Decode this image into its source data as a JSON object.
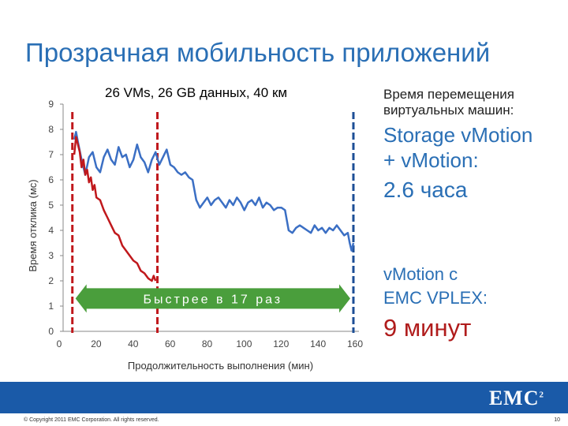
{
  "slide": {
    "title": "Прозрачная мобильность приложений",
    "copyright": "© Copyright 2011 EMC Corporation. All rights reserved.",
    "page_number": "10",
    "logo_text": "EMC",
    "logo_sup": "2"
  },
  "side_panel": {
    "heading_line1": "Время перемещения",
    "heading_line2": "виртуальных машин:",
    "tech1_line1": "Storage vMotion",
    "tech1_line2": "+ vMotion:",
    "time1": "2.6 часа",
    "tech2_line1": "vMotion с",
    "tech2_line2": "EMC VPLEX:",
    "time2": "9 минут"
  },
  "chart_data": {
    "type": "line",
    "title": "26 VMs, 26 GB данных, 40 км",
    "xlabel": "Продолжительность выполнения (мин)",
    "ylabel": "Время отклика (мс)",
    "xlim": [
      0,
      160
    ],
    "ylim": [
      0,
      9
    ],
    "xticks": [
      0,
      20,
      40,
      60,
      80,
      100,
      120,
      140,
      160
    ],
    "yticks": [
      0,
      1,
      2,
      3,
      4,
      5,
      6,
      7,
      8,
      9
    ],
    "annotation": "Быстрее в 17 раз",
    "colors": {
      "blue": "#3b6fc4",
      "red": "#c0181c",
      "arrow": "#4a9e3c",
      "divider_red": "#c0181c",
      "divider_blue": "#1d4e96"
    },
    "series": [
      {
        "color": "blue",
        "x": [
          6,
          7,
          8,
          10,
          12,
          14,
          16,
          18,
          20,
          22,
          24,
          26,
          28,
          30,
          32,
          34,
          36,
          38,
          40,
          42,
          44,
          46,
          48,
          50,
          52,
          54,
          56,
          58,
          60,
          62,
          64,
          66,
          68,
          70,
          72,
          74,
          76,
          78,
          80,
          82,
          84,
          86,
          88,
          90,
          92,
          94,
          96,
          98,
          100,
          102,
          104,
          106,
          108,
          110,
          112,
          114,
          116,
          118,
          120,
          122,
          124,
          126,
          128,
          130,
          132,
          134,
          136,
          138,
          140,
          142,
          144,
          146,
          148,
          150,
          152,
          154,
          155,
          156,
          157
        ],
        "y": [
          7.6,
          7.9,
          7.5,
          6.8,
          6.2,
          6.9,
          7.1,
          6.5,
          6.3,
          6.9,
          7.2,
          6.8,
          6.6,
          7.3,
          6.9,
          7.0,
          6.5,
          6.8,
          7.4,
          6.9,
          6.7,
          6.3,
          6.8,
          7.1,
          6.6,
          6.9,
          7.2,
          6.6,
          6.5,
          6.3,
          6.2,
          6.3,
          6.1,
          6.0,
          5.2,
          4.9,
          5.1,
          5.3,
          5.0,
          5.2,
          5.3,
          5.1,
          4.9,
          5.2,
          5.0,
          5.3,
          5.1,
          4.8,
          5.1,
          5.2,
          5.0,
          5.3,
          4.9,
          5.1,
          5.0,
          4.8,
          4.9,
          4.9,
          4.8,
          4.0,
          3.9,
          4.1,
          4.2,
          4.1,
          4.0,
          3.9,
          4.2,
          4.0,
          4.1,
          3.9,
          4.1,
          4.0,
          4.2,
          4.0,
          3.8,
          3.9,
          3.5,
          3.2,
          3.5
        ]
      },
      {
        "color": "red",
        "x": [
          6,
          7,
          8,
          9,
          10,
          11,
          12,
          13,
          14,
          15,
          16,
          17,
          18,
          20,
          22,
          24,
          26,
          28,
          30,
          32,
          34,
          36,
          38,
          40,
          42,
          44,
          46,
          48,
          49,
          50
        ],
        "y": [
          7.0,
          7.7,
          7.4,
          7.1,
          6.5,
          6.8,
          6.2,
          6.4,
          5.9,
          6.1,
          5.6,
          5.8,
          5.3,
          5.2,
          4.8,
          4.5,
          4.2,
          3.9,
          3.8,
          3.4,
          3.2,
          3.0,
          2.8,
          2.7,
          2.4,
          2.3,
          2.1,
          2.0,
          2.2,
          2.0
        ]
      }
    ],
    "dividers_x": [
      5,
      51,
      157
    ]
  }
}
